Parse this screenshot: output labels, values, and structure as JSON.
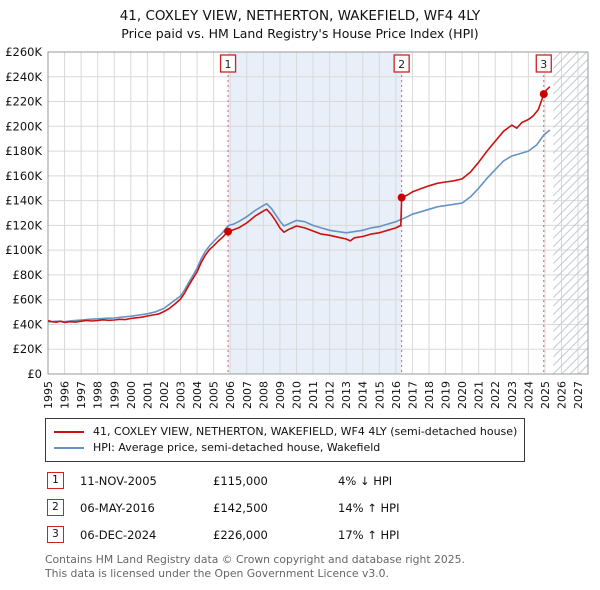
{
  "chart_data": {
    "type": "line",
    "title": "41, COXLEY VIEW, NETHERTON, WAKEFIELD, WF4 4LY",
    "subtitle": "Price paid vs. HM Land Registry's House Price Index (HPI)",
    "xlabel": "",
    "ylabel": "",
    "grid": true,
    "legend_position": "bottom",
    "x_range": [
      1995,
      2027.6
    ],
    "y_range": [
      0,
      260000
    ],
    "x_ticks": [
      1995,
      1996,
      1997,
      1998,
      1999,
      2000,
      2001,
      2002,
      2003,
      2004,
      2005,
      2006,
      2007,
      2008,
      2009,
      2010,
      2011,
      2012,
      2013,
      2014,
      2015,
      2016,
      2017,
      2018,
      2019,
      2020,
      2021,
      2022,
      2023,
      2024,
      2025,
      2026,
      2027
    ],
    "y_tick_values": [
      0,
      20000,
      40000,
      60000,
      80000,
      100000,
      120000,
      140000,
      160000,
      180000,
      200000,
      220000,
      240000,
      260000
    ],
    "y_tick_labels": [
      "£0",
      "£20K",
      "£40K",
      "£60K",
      "£80K",
      "£100K",
      "£120K",
      "£140K",
      "£160K",
      "£180K",
      "£200K",
      "£220K",
      "£240K",
      "£260K"
    ],
    "shaded_region": {
      "from": 2005.87,
      "to": 2016.35,
      "color": "#e9eff8"
    },
    "hatch_region": {
      "from": 2025.5,
      "to": 2027.6
    },
    "series": [
      {
        "name": "41, COXLEY VIEW, NETHERTON, WAKEFIELD, WF4 4LY (semi-detached house)",
        "color": "#cc1111",
        "points": [
          [
            1995.0,
            43000
          ],
          [
            1995.25,
            42200
          ],
          [
            1995.5,
            41800
          ],
          [
            1995.75,
            42600
          ],
          [
            1996.0,
            41600
          ],
          [
            1996.33,
            42200
          ],
          [
            1996.66,
            41900
          ],
          [
            1997.0,
            42600
          ],
          [
            1997.33,
            43200
          ],
          [
            1997.66,
            42800
          ],
          [
            1998.0,
            43200
          ],
          [
            1998.33,
            43800
          ],
          [
            1998.66,
            43400
          ],
          [
            1999.0,
            43600
          ],
          [
            1999.33,
            44200
          ],
          [
            1999.66,
            43900
          ],
          [
            2000.0,
            44800
          ],
          [
            2000.33,
            45400
          ],
          [
            2000.66,
            45900
          ],
          [
            2001.0,
            46800
          ],
          [
            2001.33,
            47600
          ],
          [
            2001.66,
            48400
          ],
          [
            2002.0,
            50500
          ],
          [
            2002.33,
            53000
          ],
          [
            2002.66,
            56500
          ],
          [
            2003.0,
            60500
          ],
          [
            2003.25,
            65500
          ],
          [
            2003.5,
            71500
          ],
          [
            2003.75,
            77000
          ],
          [
            2004.0,
            82500
          ],
          [
            2004.25,
            90000
          ],
          [
            2004.5,
            96000
          ],
          [
            2004.75,
            100500
          ],
          [
            2005.0,
            103500
          ],
          [
            2005.25,
            107000
          ],
          [
            2005.5,
            110000
          ],
          [
            2005.87,
            115000
          ],
          [
            2006.2,
            116500
          ],
          [
            2006.5,
            118000
          ],
          [
            2007.0,
            122000
          ],
          [
            2007.5,
            127500
          ],
          [
            2008.0,
            131500
          ],
          [
            2008.2,
            133000
          ],
          [
            2008.5,
            128500
          ],
          [
            2008.75,
            123500
          ],
          [
            2009.0,
            118000
          ],
          [
            2009.25,
            114500
          ],
          [
            2009.5,
            116500
          ],
          [
            2009.75,
            118000
          ],
          [
            2010.0,
            119500
          ],
          [
            2010.5,
            118000
          ],
          [
            2011.0,
            115500
          ],
          [
            2011.5,
            113000
          ],
          [
            2012.0,
            112000
          ],
          [
            2012.5,
            110500
          ],
          [
            2013.0,
            109000
          ],
          [
            2013.25,
            107500
          ],
          [
            2013.5,
            110000
          ],
          [
            2014.0,
            111000
          ],
          [
            2014.5,
            113000
          ],
          [
            2015.0,
            114000
          ],
          [
            2015.5,
            116000
          ],
          [
            2016.0,
            118000
          ],
          [
            2016.3,
            120000
          ],
          [
            2016.35,
            142500
          ],
          [
            2016.7,
            144500
          ],
          [
            2017.0,
            147000
          ],
          [
            2017.5,
            149500
          ],
          [
            2018.0,
            152000
          ],
          [
            2018.5,
            154000
          ],
          [
            2019.0,
            155000
          ],
          [
            2019.5,
            156000
          ],
          [
            2020.0,
            157500
          ],
          [
            2020.5,
            163000
          ],
          [
            2021.0,
            171000
          ],
          [
            2021.5,
            180000
          ],
          [
            2022.0,
            188000
          ],
          [
            2022.5,
            196000
          ],
          [
            2023.0,
            201000
          ],
          [
            2023.3,
            198500
          ],
          [
            2023.6,
            203000
          ],
          [
            2024.0,
            205500
          ],
          [
            2024.3,
            208500
          ],
          [
            2024.6,
            213500
          ],
          [
            2024.93,
            226000
          ],
          [
            2025.1,
            229500
          ],
          [
            2025.3,
            232000
          ]
        ]
      },
      {
        "name": "HPI: Average price, semi-detached house, Wakefield",
        "color": "#6593c4",
        "points": [
          [
            1995.0,
            42000
          ],
          [
            1995.5,
            42600
          ],
          [
            1996.0,
            42200
          ],
          [
            1996.5,
            43000
          ],
          [
            1997.0,
            43600
          ],
          [
            1997.5,
            44200
          ],
          [
            1998.0,
            44600
          ],
          [
            1998.5,
            45000
          ],
          [
            1999.0,
            45200
          ],
          [
            1999.5,
            46000
          ],
          [
            2000.0,
            46600
          ],
          [
            2000.5,
            47600
          ],
          [
            2001.0,
            48600
          ],
          [
            2001.5,
            50200
          ],
          [
            2002.0,
            53000
          ],
          [
            2002.5,
            58000
          ],
          [
            2003.0,
            63000
          ],
          [
            2003.25,
            68000
          ],
          [
            2003.5,
            74000
          ],
          [
            2003.75,
            79500
          ],
          [
            2004.0,
            85500
          ],
          [
            2004.25,
            93000
          ],
          [
            2004.5,
            99000
          ],
          [
            2004.75,
            103500
          ],
          [
            2005.0,
            107000
          ],
          [
            2005.25,
            110500
          ],
          [
            2005.5,
            113500
          ],
          [
            2005.87,
            119800
          ],
          [
            2006.2,
            121000
          ],
          [
            2006.5,
            123000
          ],
          [
            2007.0,
            127000
          ],
          [
            2007.5,
            132000
          ],
          [
            2008.0,
            136000
          ],
          [
            2008.2,
            137500
          ],
          [
            2008.5,
            133500
          ],
          [
            2008.75,
            128500
          ],
          [
            2009.0,
            123500
          ],
          [
            2009.25,
            119500
          ],
          [
            2009.5,
            121000
          ],
          [
            2010.0,
            124000
          ],
          [
            2010.5,
            123000
          ],
          [
            2011.0,
            120000
          ],
          [
            2011.5,
            118000
          ],
          [
            2012.0,
            116000
          ],
          [
            2012.5,
            115000
          ],
          [
            2013.0,
            114000
          ],
          [
            2013.5,
            115000
          ],
          [
            2014.0,
            116000
          ],
          [
            2014.5,
            118000
          ],
          [
            2015.0,
            119000
          ],
          [
            2015.5,
            121000
          ],
          [
            2016.0,
            123000
          ],
          [
            2016.35,
            125000
          ],
          [
            2016.7,
            127000
          ],
          [
            2017.0,
            129000
          ],
          [
            2017.5,
            131000
          ],
          [
            2018.0,
            133000
          ],
          [
            2018.5,
            135000
          ],
          [
            2019.0,
            136000
          ],
          [
            2019.5,
            137000
          ],
          [
            2020.0,
            138000
          ],
          [
            2020.5,
            143000
          ],
          [
            2021.0,
            150000
          ],
          [
            2021.5,
            158000
          ],
          [
            2022.0,
            165000
          ],
          [
            2022.5,
            172000
          ],
          [
            2023.0,
            176000
          ],
          [
            2023.5,
            178000
          ],
          [
            2024.0,
            180000
          ],
          [
            2024.5,
            185000
          ],
          [
            2024.93,
            193000
          ],
          [
            2025.3,
            197000
          ]
        ]
      }
    ],
    "markers": [
      {
        "n": "1",
        "x": 2005.87,
        "y": 115000
      },
      {
        "n": "2",
        "x": 2016.35,
        "y": 142500
      },
      {
        "n": "3",
        "x": 2024.93,
        "y": 226000
      }
    ]
  },
  "colors": {
    "sale_marker": "#cc0000",
    "sale_line": "#e05a68",
    "box_border": "#cc2222",
    "grid": "#d9d9d9",
    "plot_border": "#999999",
    "hatch": "#c3cad4"
  },
  "table": {
    "rows": [
      {
        "n": "1",
        "date": "11-NOV-2005",
        "price": "£115,000",
        "hpi": "4% ↓ HPI"
      },
      {
        "n": "2",
        "date": "06-MAY-2016",
        "price": "£142,500",
        "hpi": "14% ↑ HPI"
      },
      {
        "n": "3",
        "date": "06-DEC-2024",
        "price": "£226,000",
        "hpi": "17% ↑ HPI"
      }
    ]
  },
  "footer": {
    "line1": "Contains HM Land Registry data © Crown copyright and database right 2025.",
    "line2": "This data is licensed under the Open Government Licence v3.0."
  }
}
